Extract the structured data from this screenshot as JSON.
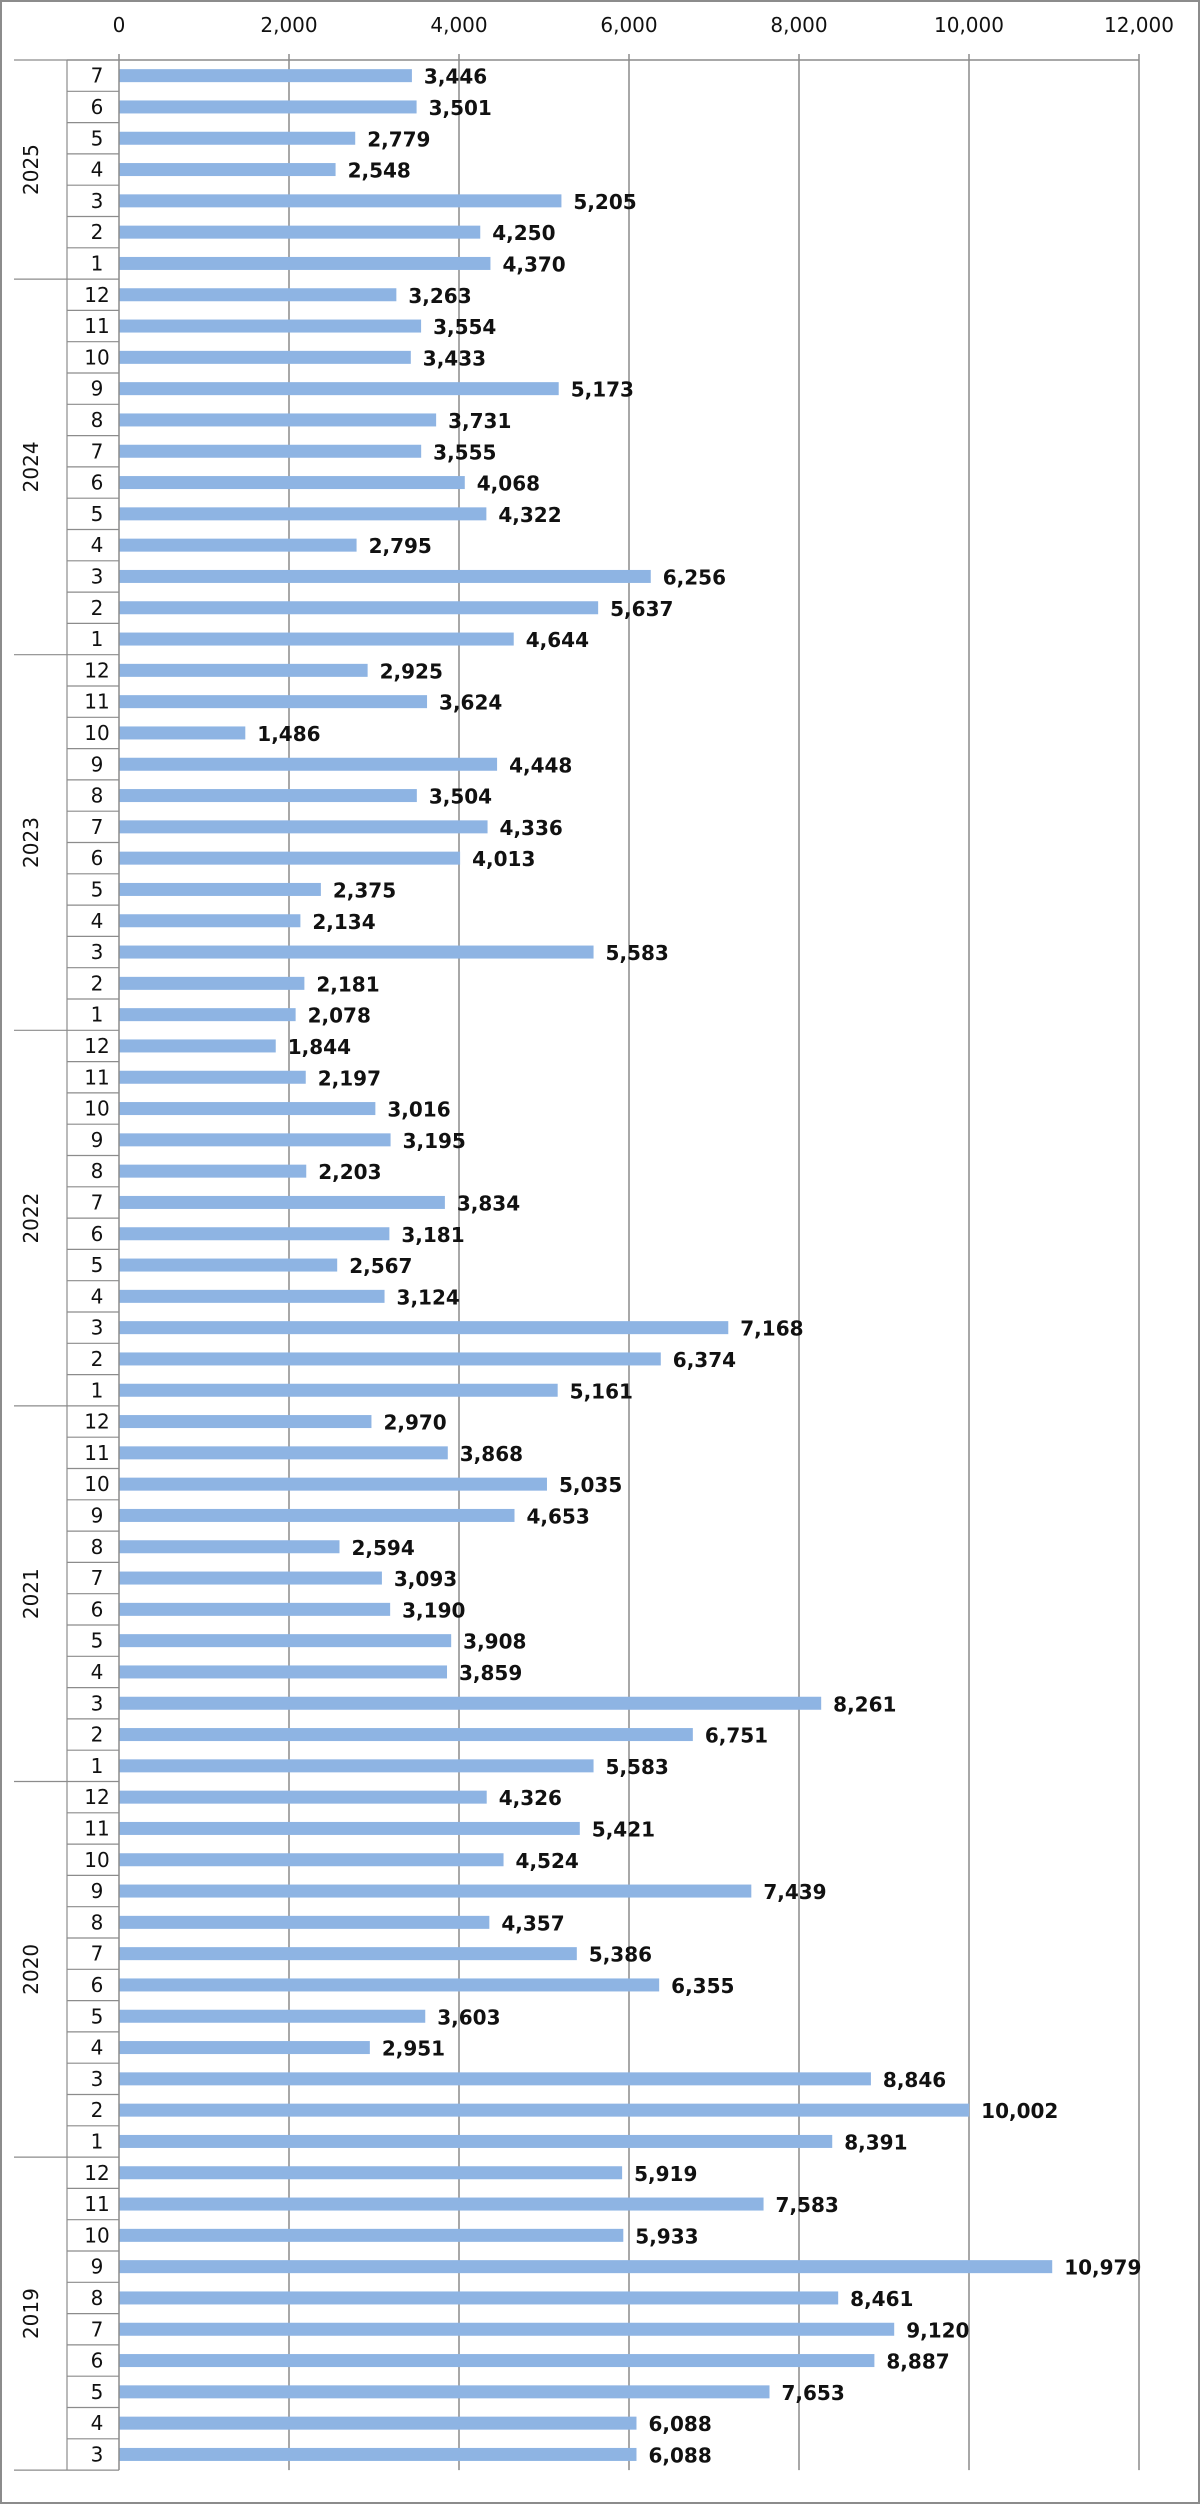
{
  "chart_data": {
    "type": "bar",
    "orientation": "horizontal",
    "xlim": [
      0,
      12000
    ],
    "x_ticks": [
      0,
      2000,
      4000,
      6000,
      8000,
      10000,
      12000
    ],
    "x_tick_labels": [
      "0",
      "2,000",
      "4,000",
      "6,000",
      "8,000",
      "10,000",
      "12,000"
    ],
    "x_axis_position": "top",
    "grid": "vertical",
    "bar_color": "#8EB4E3",
    "groups": [
      {
        "year": "2025",
        "months": [
          "7",
          "6",
          "5",
          "4",
          "3",
          "2",
          "1"
        ],
        "values": [
          3446,
          3501,
          2779,
          2548,
          5205,
          4250,
          4370
        ],
        "labels": [
          "3,446",
          "3,501",
          "2,779",
          "2,548",
          "5,205",
          "4,250",
          "4,370"
        ]
      },
      {
        "year": "2024",
        "months": [
          "12",
          "11",
          "10",
          "9",
          "8",
          "7",
          "6",
          "5",
          "4",
          "3",
          "2",
          "1"
        ],
        "values": [
          3263,
          3554,
          3433,
          5173,
          3731,
          3555,
          4068,
          4322,
          2795,
          6256,
          5637,
          4644
        ],
        "labels": [
          "3,263",
          "3,554",
          "3,433",
          "5,173",
          "3,731",
          "3,555",
          "4,068",
          "4,322",
          "2,795",
          "6,256",
          "5,637",
          "4,644"
        ]
      },
      {
        "year": "2023",
        "months": [
          "12",
          "11",
          "10",
          "9",
          "8",
          "7",
          "6",
          "5",
          "4",
          "3",
          "2",
          "1"
        ],
        "values": [
          2925,
          3624,
          1486,
          4448,
          3504,
          4336,
          4013,
          2375,
          2134,
          5583,
          2181,
          2078
        ],
        "labels": [
          "2,925",
          "3,624",
          "1,486",
          "4,448",
          "3,504",
          "4,336",
          "4,013",
          "2,375",
          "2,134",
          "5,583",
          "2,181",
          "2,078"
        ]
      },
      {
        "year": "2022",
        "months": [
          "12",
          "11",
          "10",
          "9",
          "8",
          "7",
          "6",
          "5",
          "4",
          "3",
          "2",
          "1"
        ],
        "values": [
          1844,
          2197,
          3016,
          3195,
          2203,
          3834,
          3181,
          2567,
          3124,
          7168,
          6374,
          5161
        ],
        "labels": [
          "1,844",
          "2,197",
          "3,016",
          "3,195",
          "2,203",
          "3,834",
          "3,181",
          "2,567",
          "3,124",
          "7,168",
          "6,374",
          "5,161"
        ]
      },
      {
        "year": "2021",
        "months": [
          "12",
          "11",
          "10",
          "9",
          "8",
          "7",
          "6",
          "5",
          "4",
          "3",
          "2",
          "1"
        ],
        "values": [
          2970,
          3868,
          5035,
          4653,
          2594,
          3093,
          3190,
          3908,
          3859,
          8261,
          6751,
          5583
        ],
        "labels": [
          "2,970",
          "3,868",
          "5,035",
          "4,653",
          "2,594",
          "3,093",
          "3,190",
          "3,908",
          "3,859",
          "8,261",
          "6,751",
          "5,583"
        ]
      },
      {
        "year": "2020",
        "months": [
          "12",
          "11",
          "10",
          "9",
          "8",
          "7",
          "6",
          "5",
          "4",
          "3",
          "2",
          "1"
        ],
        "values": [
          4326,
          5421,
          4524,
          7439,
          4357,
          5386,
          6355,
          3603,
          2951,
          8846,
          10002,
          8391
        ],
        "labels": [
          "4,326",
          "5,421",
          "4,524",
          "7,439",
          "4,357",
          "5,386",
          "6,355",
          "3,603",
          "2,951",
          "8,846",
          "10,002",
          "8,391"
        ]
      },
      {
        "year": "2019",
        "months": [
          "12",
          "11",
          "10",
          "9",
          "8",
          "7",
          "6",
          "5",
          "4",
          "3"
        ],
        "values": [
          5919,
          7583,
          5933,
          10979,
          8461,
          9120,
          8887,
          7653,
          6088,
          6088
        ],
        "labels": [
          "5,919",
          "7,583",
          "5,933",
          "10,979",
          "8,461",
          "9,120",
          "8,887",
          "7,653",
          "6,088",
          "6,088"
        ]
      }
    ]
  }
}
